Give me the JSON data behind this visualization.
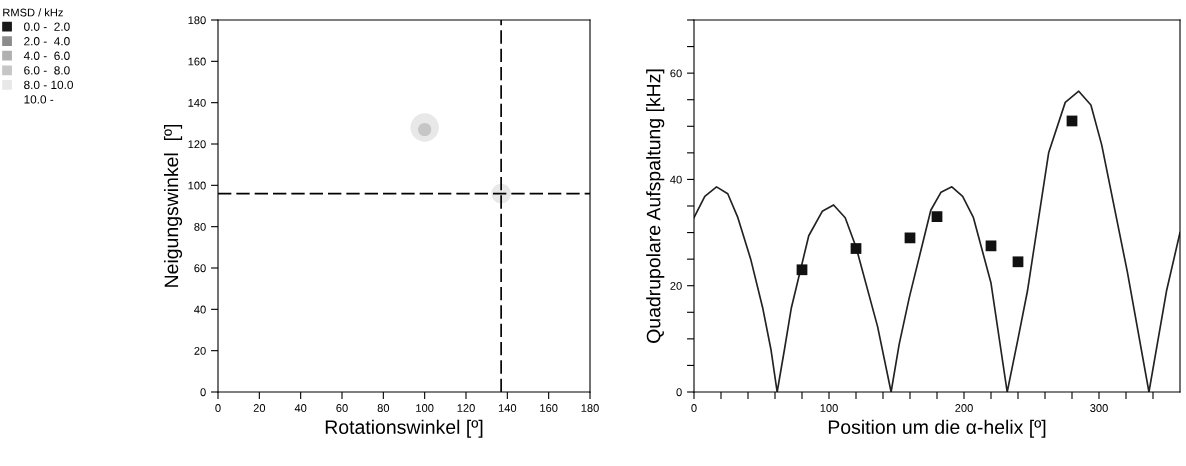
{
  "chart_data": [
    {
      "type": "scatter",
      "xlabel": "Rotationswinkel [º]",
      "ylabel": "Neigungswinkel  [º]",
      "legend_title": "RMSD / kHz",
      "legend": "left",
      "xlim": [
        0,
        180
      ],
      "ylim": [
        0,
        180
      ],
      "xticks": [
        0,
        20,
        40,
        60,
        80,
        100,
        120,
        140,
        160,
        180
      ],
      "yticks": [
        0,
        20,
        40,
        60,
        80,
        100,
        120,
        140,
        160,
        180
      ],
      "marker": "circle",
      "series": [
        {
          "name": "0.0 -  2.0",
          "color": "#1a1a1a"
        },
        {
          "name": "2.0 -  4.0",
          "color": "#8c8c8c"
        },
        {
          "name": "4.0 -  6.0",
          "color": "#b0b0b0"
        },
        {
          "name": "6.0 -  8.0",
          "color": "#c6c6c6",
          "x": [
            100
          ],
          "values": [
            127
          ]
        },
        {
          "name": "8.0 - 10.0",
          "color": "#e8e8e8",
          "x": [
            100,
            137
          ],
          "values": [
            128,
            96
          ]
        },
        {
          "name": "10.0 -"
        }
      ],
      "ref_lines": [
        {
          "axis": "x",
          "value": 137,
          "color": "#000000",
          "line_style": "dashed"
        },
        {
          "axis": "y",
          "value": 96,
          "color": "#000000",
          "line_style": "dashed"
        }
      ]
    },
    {
      "type": "line",
      "xlabel": "Position um die α-helix [º]",
      "ylabel": "Quadrupolare Aufspaltung [kHz]",
      "xlim": [
        0,
        360
      ],
      "ylim": [
        0,
        70
      ],
      "xticks": [
        0,
        {
          "value": 20,
          "label": null
        },
        {
          "value": 40,
          "label": null
        },
        {
          "value": 60,
          "label": null
        },
        {
          "value": 80,
          "label": null
        },
        100,
        {
          "value": 120,
          "label": null
        },
        {
          "value": 140,
          "label": null
        },
        {
          "value": 160,
          "label": null
        },
        {
          "value": 180,
          "label": null
        },
        200,
        {
          "value": 220,
          "label": null
        },
        {
          "value": 240,
          "label": null
        },
        {
          "value": 260,
          "label": null
        },
        {
          "value": 280,
          "label": null
        },
        300,
        {
          "value": 320,
          "label": null
        },
        {
          "value": 340,
          "label": null
        }
      ],
      "yticks": [
        0,
        {
          "value": 5,
          "label": null
        },
        {
          "value": 10,
          "label": null
        },
        {
          "value": 15,
          "label": null
        },
        20,
        {
          "value": 25,
          "label": null
        },
        {
          "value": 30,
          "label": null
        },
        {
          "value": 35,
          "label": null
        },
        40,
        {
          "value": 45,
          "label": null
        },
        {
          "value": 50,
          "label": null
        },
        {
          "value": 55,
          "label": null
        },
        60,
        {
          "value": 65,
          "label": null
        },
        {
          "value": 70,
          "label": null
        }
      ],
      "series": [
        {
          "type": "line",
          "color": "#222222",
          "marker": "none",
          "x": [
            0,
            8,
            16.7,
            25,
            32.5,
            42,
            51,
            57,
            61.6,
            67,
            72,
            85,
            95,
            103.4,
            112,
            120,
            136,
            146,
            152,
            159.5,
            175.4,
            183,
            191,
            199,
            207,
            220,
            232,
            240,
            247,
            262.7,
            275,
            285,
            294,
            302,
            321,
            337,
            350,
            360
          ],
          "values": [
            32.8,
            36.8,
            38.6,
            37.3,
            32.8,
            25,
            15.7,
            8,
            0,
            8,
            15.7,
            29.4,
            34,
            35.2,
            32.8,
            27.3,
            12.3,
            0,
            9,
            17.8,
            34.2,
            37.6,
            38.6,
            36.8,
            32.8,
            20.5,
            0,
            10,
            19,
            45,
            54.5,
            56.6,
            54,
            46.5,
            22.6,
            0,
            19,
            30
          ]
        },
        {
          "type": "scatter",
          "color": "#111111",
          "marker": "square",
          "x": [
            80,
            120,
            160,
            180,
            220,
            240,
            280
          ],
          "values": [
            23,
            27,
            29,
            33,
            27.5,
            24.5,
            51
          ]
        }
      ]
    }
  ]
}
